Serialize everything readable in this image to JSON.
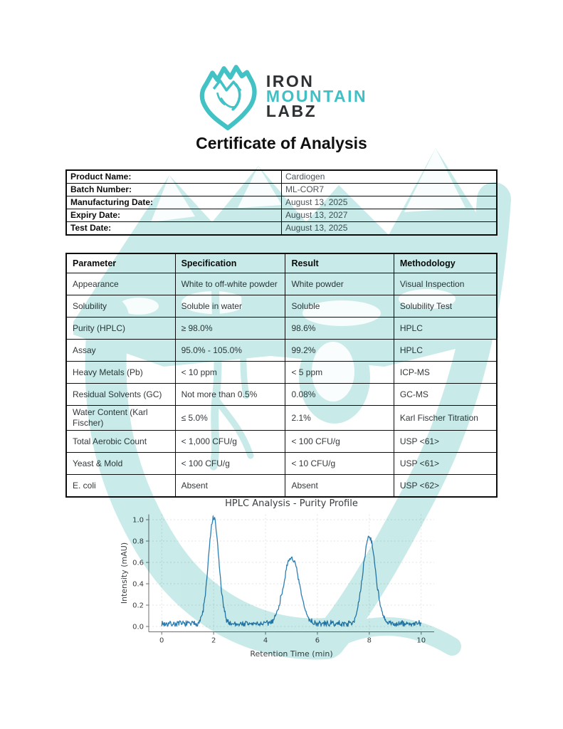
{
  "logo": {
    "word1": "IRON",
    "word2": "MOUNTAIN",
    "word3": "LABZ",
    "icon": "mountain-heart-icon",
    "teal": "#3fc0c5",
    "dark": "#2d3134"
  },
  "title": "Certificate of Analysis",
  "product_info": {
    "rows": [
      {
        "label": "Product Name:",
        "value": "Cardiogen"
      },
      {
        "label": "Batch Number:",
        "value": "ML-COR7"
      },
      {
        "label": "Manufacturing Date:",
        "value": "August 13, 2025"
      },
      {
        "label": "Expiry Date:",
        "value": "August 13, 2027"
      },
      {
        "label": "Test Date:",
        "value": "August 13, 2025"
      }
    ]
  },
  "spec_table": {
    "headers": [
      "Parameter",
      "Specification",
      "Result",
      "Methodology"
    ],
    "rows": [
      [
        "Appearance",
        "White to off-white powder",
        "White powder",
        "Visual Inspection"
      ],
      [
        "Solubility",
        "Soluble in water",
        "Soluble",
        "Solubility Test"
      ],
      [
        "Purity (HPLC)",
        "≥ 98.0%",
        "98.6%",
        "HPLC"
      ],
      [
        "Assay",
        "95.0% - 105.0%",
        "99.2%",
        "HPLC"
      ],
      [
        "Heavy Metals (Pb)",
        "< 10 ppm",
        "< 5 ppm",
        "ICP-MS"
      ],
      [
        "Residual Solvents (GC)",
        "Not more than 0.5%",
        "0.08%",
        "GC-MS"
      ],
      [
        "Water Content (Karl Fischer)",
        "≤ 5.0%",
        "2.1%",
        "Karl Fischer Titration"
      ],
      [
        "Total Aerobic Count",
        "< 1,000 CFU/g",
        "< 100 CFU/g",
        "USP <61>"
      ],
      [
        "Yeast & Mold",
        "< 100 CFU/g",
        "< 10 CFU/g",
        "USP <61>"
      ],
      [
        "E. coli",
        "Absent",
        "Absent",
        "USP <62>"
      ]
    ]
  },
  "chart_data": {
    "type": "line",
    "title": "HPLC Analysis - Purity Profile",
    "xlabel": "Retention Time (min)",
    "ylabel": "Intensity (mAU)",
    "xlim": [
      -0.5,
      10.5
    ],
    "ylim": [
      -0.05,
      1.05
    ],
    "xticks": [
      0,
      2,
      4,
      6,
      8,
      10
    ],
    "yticks": [
      0.0,
      0.2,
      0.4,
      0.6,
      0.8,
      1.0
    ],
    "grid": true,
    "line_color": "#2d7eb3",
    "grid_color": "#dcdcdc",
    "axis_color": "#6f6f6f",
    "text_color": "#3a3f42",
    "baseline": 0.025,
    "noise_amplitude": 0.018,
    "peaks": [
      {
        "center": 2.0,
        "height": 0.99,
        "sigma": 0.2
      },
      {
        "center": 5.0,
        "height": 0.62,
        "sigma": 0.3
      },
      {
        "center": 8.0,
        "height": 0.82,
        "sigma": 0.24
      }
    ]
  },
  "watermark_color": "#bfe8e6"
}
